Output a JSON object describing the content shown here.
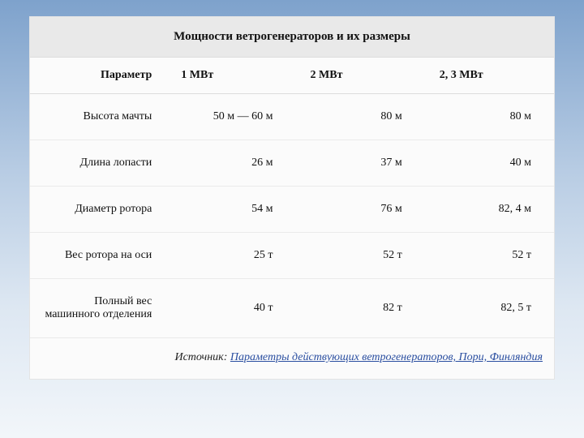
{
  "table": {
    "title": "Мощности ветрогенераторов и их размеры",
    "header_param": "Параметр",
    "columns": [
      "1 МВт",
      "2 МВт",
      "2, 3 МВт"
    ],
    "rows": [
      {
        "param": "Высота мачты",
        "values": [
          "50 м — 60 м",
          "80 м",
          "80 м"
        ]
      },
      {
        "param": "Длина лопасти",
        "values": [
          "26 м",
          "37 м",
          "40 м"
        ]
      },
      {
        "param": "Диаметр ротора",
        "values": [
          "54 м",
          "76 м",
          "82, 4 м"
        ]
      },
      {
        "param": "Вес ротора на оси",
        "values": [
          "25 т",
          "52 т",
          "52 т"
        ]
      },
      {
        "param": "Полный вес машинного отделения",
        "values": [
          "40 т",
          "82 т",
          "82, 5 т"
        ]
      }
    ],
    "source_label": "Источник:",
    "source_link_text": "Параметры действующих ветрогенераторов, Пори, Финляндия",
    "colors": {
      "title_bg": "#e9e9e9",
      "panel_bg": "#fbfbfb",
      "border": "#eaeaea",
      "link": "#2a4ea0",
      "slide_gradient": [
        "#7ea2cc",
        "#b9cde4",
        "#dde7f2",
        "#f2f6fa"
      ]
    },
    "font": {
      "family": "serif",
      "title_size_pt": 15,
      "body_size_pt": 14
    }
  }
}
